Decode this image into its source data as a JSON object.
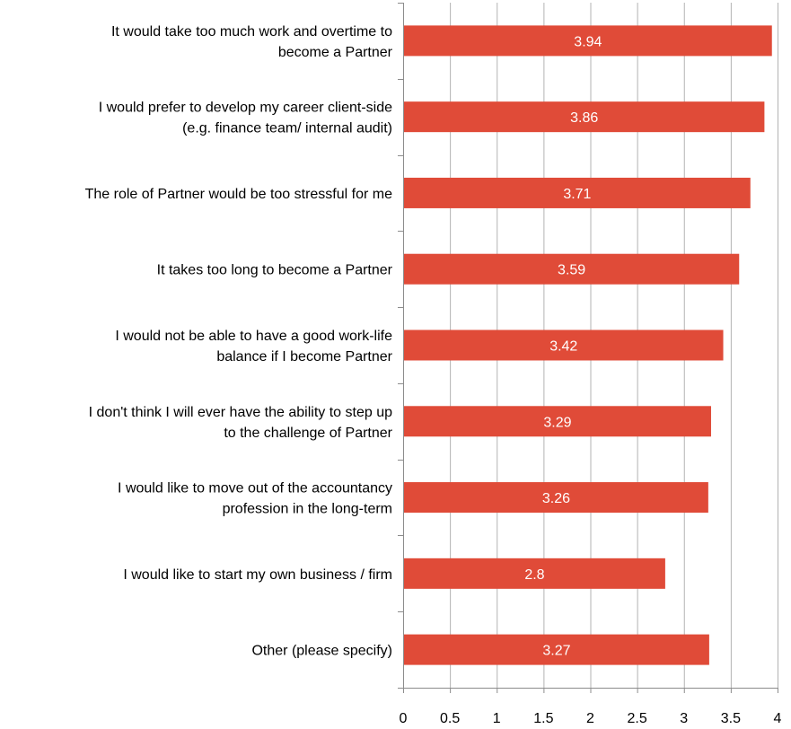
{
  "chart_data": {
    "type": "bar",
    "orientation": "horizontal",
    "categories": [
      [
        "It would take too much work and overtime to",
        "become a Partner"
      ],
      [
        "I would prefer to develop my career client-side",
        "(e.g. finance team/ internal audit)"
      ],
      [
        "The role of Partner would be too stressful for me"
      ],
      [
        "It takes too long to become a Partner"
      ],
      [
        "I would not be able to have a good work-life",
        "balance if I become Partner"
      ],
      [
        "I don't think I will ever have the ability to step up",
        "to the challenge of Partner"
      ],
      [
        "I would like to move out of the accountancy",
        "profession in the long-term"
      ],
      [
        "I would like to start my own business / firm"
      ],
      [
        "Other (please specify)"
      ]
    ],
    "values": [
      3.94,
      3.86,
      3.71,
      3.59,
      3.42,
      3.29,
      3.26,
      2.8,
      3.27
    ],
    "data_labels": [
      "3.94",
      "3.86",
      "3.71",
      "3.59",
      "3.42",
      "3.29",
      "3.26",
      "2.8",
      "3.27"
    ],
    "xlim": [
      0,
      4
    ],
    "x_ticks": [
      "0",
      "0.5",
      "1",
      "1.5",
      "2",
      "2.5",
      "3",
      "3.5",
      "4"
    ],
    "title": "",
    "xlabel": "",
    "ylabel": "",
    "grid": "vertical",
    "legend": "none",
    "colors": {
      "bar": "#e04b38",
      "grid": "#b3b3b3",
      "axis": "#8c8c8c"
    }
  }
}
